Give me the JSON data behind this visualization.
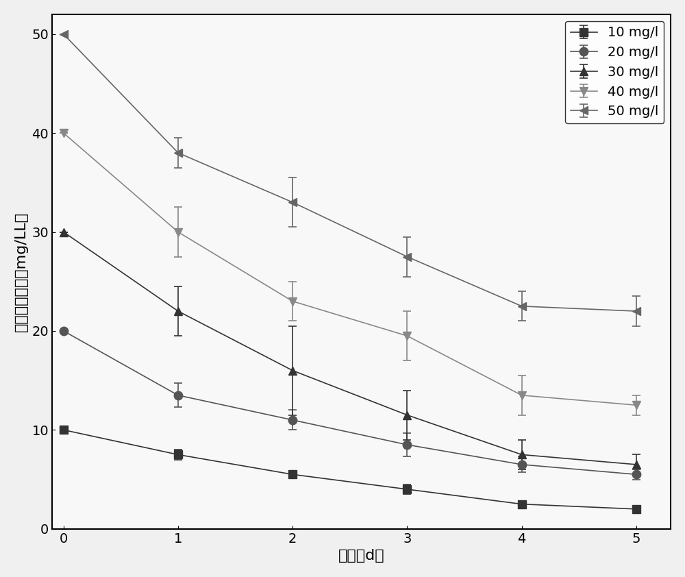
{
  "series": [
    {
      "label": "10 mg/l",
      "color": "#333333",
      "marker": "s",
      "x": [
        0,
        1,
        2,
        3,
        4,
        5
      ],
      "y": [
        10,
        7.5,
        5.5,
        4.0,
        2.5,
        2.0
      ],
      "yerr": [
        0,
        0.5,
        0.3,
        0.5,
        0.3,
        0.3
      ]
    },
    {
      "label": "20 mg/l",
      "color": "#555555",
      "marker": "o",
      "x": [
        0,
        1,
        2,
        3,
        4,
        5
      ],
      "y": [
        20,
        13.5,
        11.0,
        8.5,
        6.5,
        5.5
      ],
      "yerr": [
        0,
        1.2,
        1.0,
        1.2,
        0.8,
        0.5
      ]
    },
    {
      "label": "30 mg/l",
      "color": "#333333",
      "marker": "^",
      "x": [
        0,
        1,
        2,
        3,
        4,
        5
      ],
      "y": [
        30,
        22.0,
        16.0,
        11.5,
        7.5,
        6.5
      ],
      "yerr": [
        0,
        2.5,
        4.5,
        2.5,
        1.5,
        1.0
      ]
    },
    {
      "label": "40 mg/l",
      "color": "#888888",
      "marker": "v",
      "x": [
        0,
        1,
        2,
        3,
        4,
        5
      ],
      "y": [
        40,
        30.0,
        23.0,
        19.5,
        13.5,
        12.5
      ],
      "yerr": [
        0,
        2.5,
        2.0,
        2.5,
        2.0,
        1.0
      ]
    },
    {
      "label": "50 mg/l",
      "color": "#666666",
      "marker": "<",
      "x": [
        0,
        1,
        2,
        3,
        4,
        5
      ],
      "y": [
        50,
        38.0,
        33.0,
        27.5,
        22.5,
        22.0
      ],
      "yerr": [
        0,
        1.5,
        2.5,
        2.0,
        1.5,
        1.5
      ]
    }
  ],
  "xlabel": "时间（d）",
  "ylabel": "乙草胺残留量（mg/LL）",
  "xlim": [
    -0.1,
    5.3
  ],
  "ylim": [
    0,
    52
  ],
  "yticks": [
    0,
    10,
    20,
    30,
    40,
    50
  ],
  "xticks": [
    0,
    1,
    2,
    3,
    4,
    5
  ],
  "legend_loc": "upper right",
  "linewidth": 1.2,
  "markersize": 9,
  "capsize": 4,
  "background_color": "#f0f0f0",
  "axes_background": "#f8f8f8"
}
